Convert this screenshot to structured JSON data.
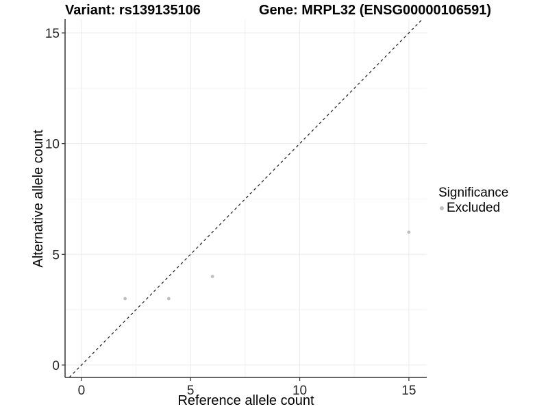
{
  "titles": {
    "variant": "Variant: rs139135106",
    "gene": "Gene: MRPL32 (ENSG00000106591)"
  },
  "chart_data": {
    "type": "scatter",
    "title": "Variant: rs139135106 — Gene: MRPL32 (ENSG00000106591)",
    "xlabel": "Reference allele count",
    "ylabel": "Alternative allele count",
    "xlim": [
      -0.75,
      15.82
    ],
    "ylim": [
      -0.56,
      15.62
    ],
    "xticks": [
      0,
      5,
      10,
      15
    ],
    "yticks": [
      0,
      5,
      10,
      15
    ],
    "grid_minor_x": [
      2.5,
      7.5,
      12.5
    ],
    "grid_minor_y": [
      2.5,
      7.5,
      12.5
    ],
    "grid": true,
    "series": [
      {
        "name": "Excluded",
        "color": "#BEBEBE",
        "points": [
          {
            "x": 2,
            "y": 3
          },
          {
            "x": 4,
            "y": 3
          },
          {
            "x": 6,
            "y": 4
          },
          {
            "x": 15,
            "y": 6
          }
        ]
      }
    ],
    "reference_line": {
      "equation": "y = x",
      "style": "dashed",
      "color": "#1a1a1a"
    },
    "legend": {
      "position": "right",
      "title": "Significance",
      "entries": [
        {
          "label": "Excluded",
          "color": "#BEBEBE"
        }
      ]
    }
  },
  "colors": {
    "background": "#ffffff",
    "grid_major": "#EBEBEB",
    "grid_minor": "#F2F2F2",
    "axis_line": "#333333",
    "tick_mark": "#333333",
    "tick_text": "#262626",
    "point": "#BEBEBE"
  }
}
